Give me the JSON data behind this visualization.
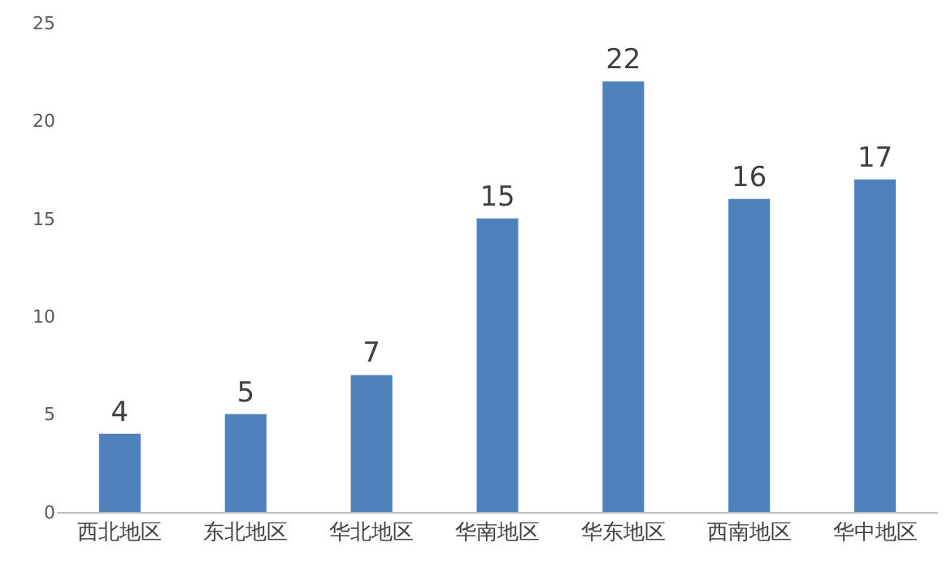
{
  "chart_data": {
    "type": "bar",
    "categories": [
      "西北地区",
      "东北地区",
      "华北地区",
      "华南地区",
      "华东地区",
      "西南地区",
      "华中地区"
    ],
    "values": [
      4,
      5,
      7,
      15,
      22,
      16,
      17
    ],
    "color": "#4f81bd",
    "ylim": [
      0,
      25
    ],
    "yticks": [
      0,
      5,
      10,
      15,
      20,
      25
    ],
    "grid": false,
    "data_labels": true
  }
}
